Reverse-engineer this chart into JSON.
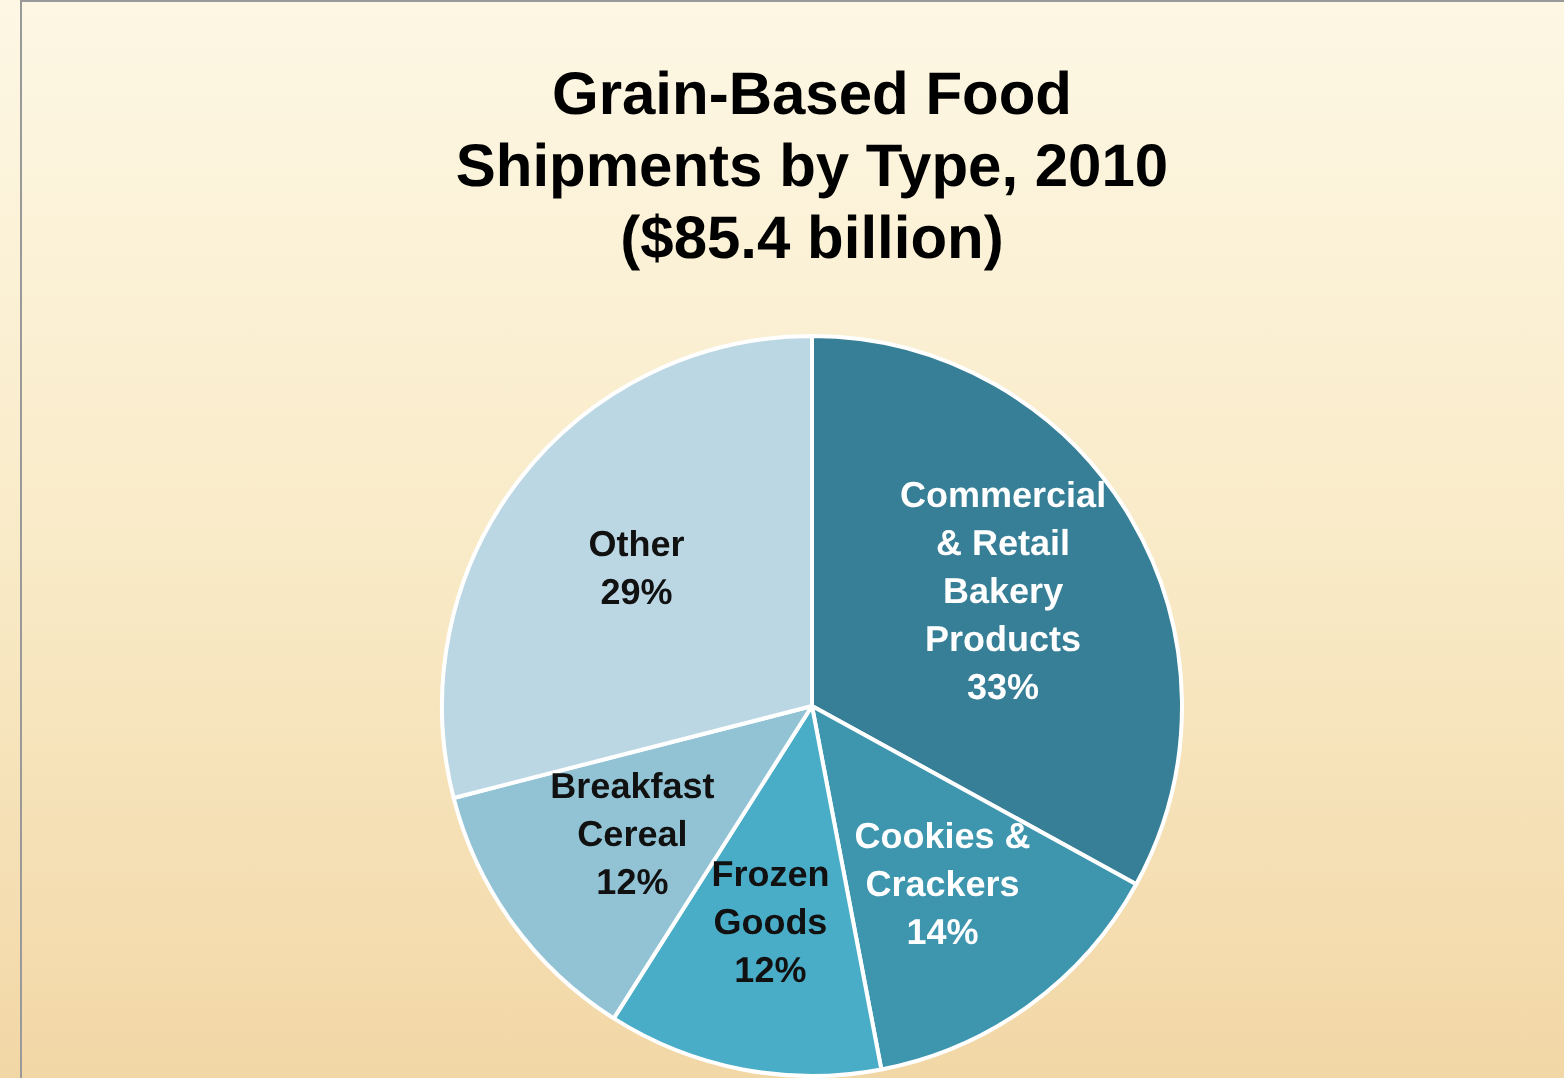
{
  "chart_data": {
    "type": "pie",
    "title": "Grain-Based Food Shipments by Type, 2010 ($85.4 billion)",
    "categories": [
      "Commercial & Retail Bakery Products",
      "Cookies & Crackers",
      "Frozen Goods",
      "Breakfast Cereal",
      "Other"
    ],
    "values": [
      33,
      14,
      12,
      12,
      29
    ],
    "value_labels": [
      "33%",
      "14%",
      "12%",
      "12%",
      "29%"
    ],
    "colors": [
      "#377f96",
      "#3d95ae",
      "#4aadc7",
      "#92c3d5",
      "#bbd7e4"
    ],
    "legend": false
  }
}
